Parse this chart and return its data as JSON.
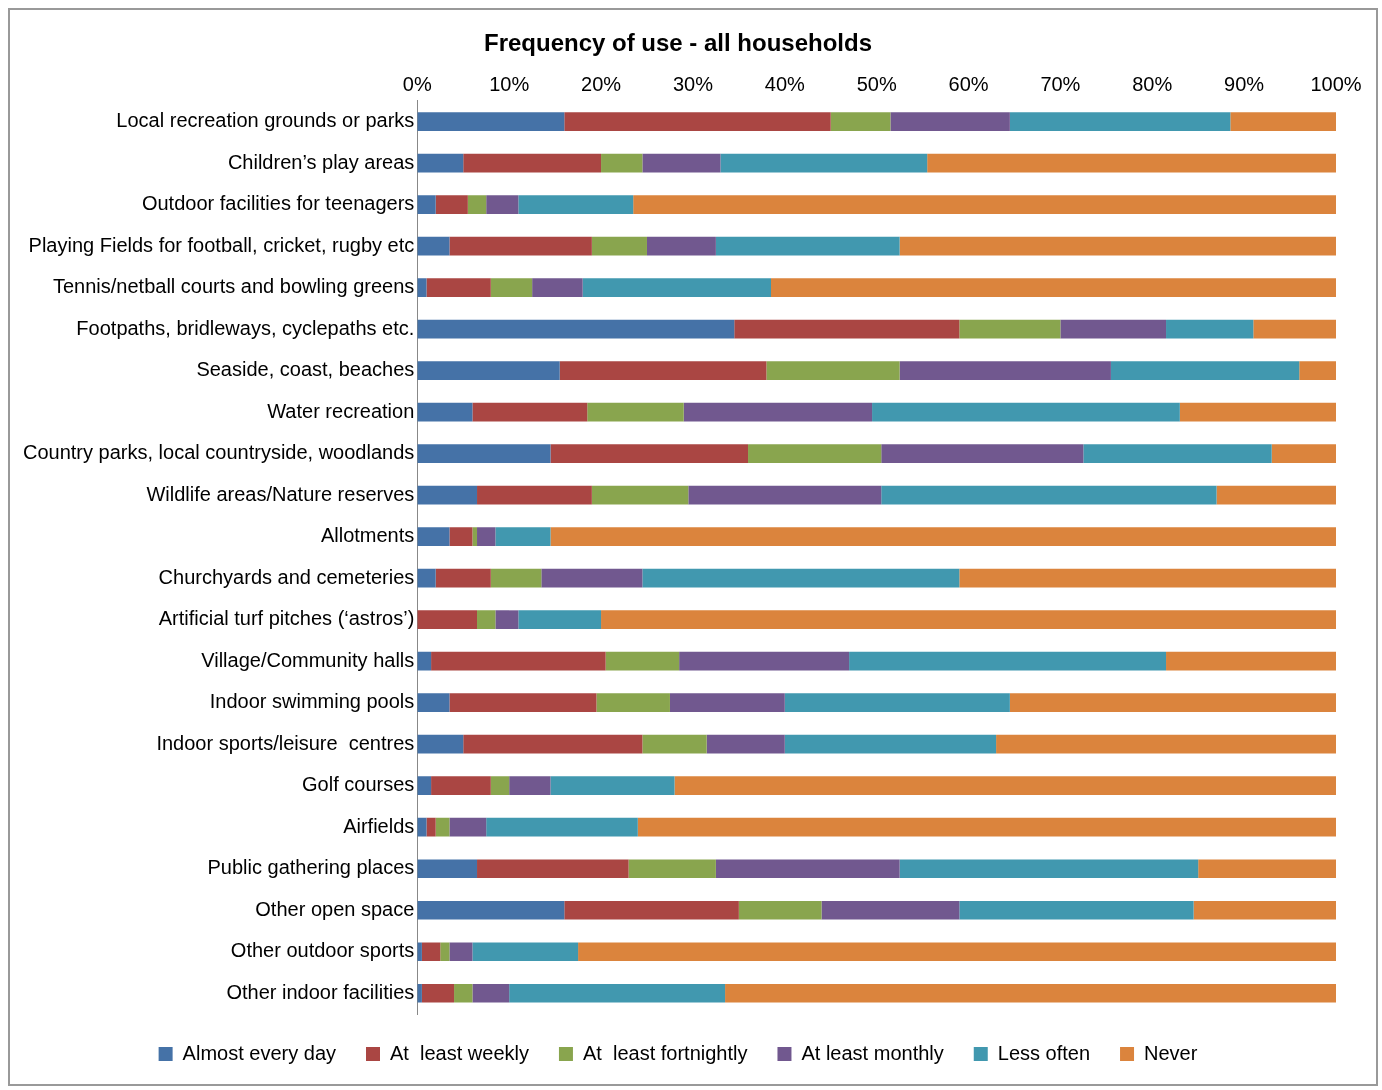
{
  "chart_data": {
    "type": "bar",
    "orientation": "horizontal",
    "stacked": true,
    "title": "Frequency of use - all households",
    "categories": [
      "Local recreation grounds or parks",
      "Children’s play areas",
      "Outdoor facilities for teenagers",
      "Playing Fields for football, cricket, rugby etc",
      "Tennis/netball courts and bowling greens",
      "Footpaths, bridleways, cyclepaths etc.",
      "Seaside, coast, beaches",
      "Water recreation",
      "Country parks, local countryside, woodlands",
      "Wildlife areas/Nature reserves",
      "Allotments",
      "Churchyards and cemeteries",
      "Artificial turf pitches (‘astros’)",
      "Village/Community halls",
      "Indoor swimming pools",
      "Indoor sports/leisure  centres",
      "Golf courses",
      "Airfields",
      "Public gathering places",
      "Other open space",
      "Other outdoor sports",
      "Other indoor facilities"
    ],
    "series": [
      {
        "name": "Almost every day",
        "color": "#4572a7",
        "values": [
          16,
          5,
          2,
          3.5,
          1,
          34.5,
          15.5,
          6,
          14.5,
          6.5,
          3.5,
          2,
          0,
          1.5,
          3.5,
          5,
          1.5,
          1,
          6.5,
          16,
          0.5,
          0.5
        ]
      },
      {
        "name": "At  least weekly",
        "color": "#aa4643",
        "values": [
          29,
          15,
          3.5,
          15.5,
          7,
          24.5,
          22.5,
          12.5,
          21.5,
          12.5,
          2.5,
          6,
          6.5,
          19,
          16,
          19.5,
          6.5,
          1,
          16.5,
          19,
          2,
          3.5
        ]
      },
      {
        "name": "At  least fortnightly",
        "color": "#89a54e",
        "values": [
          6.5,
          4.5,
          2,
          6,
          4.5,
          11,
          14.5,
          10.5,
          14.5,
          10.5,
          0.5,
          5.5,
          2,
          8,
          8,
          7,
          2,
          1.5,
          9.5,
          9,
          1,
          2
        ]
      },
      {
        "name": "At least monthly",
        "color": "#71588f",
        "values": [
          13,
          8.5,
          3.5,
          7.5,
          5.5,
          11.5,
          23,
          20.5,
          22,
          21,
          2,
          11,
          2.5,
          18.5,
          12.5,
          8.5,
          4.5,
          4,
          20,
          15,
          2.5,
          4
        ]
      },
      {
        "name": "Less often",
        "color": "#4198af",
        "values": [
          24,
          22.5,
          12.5,
          20,
          20.5,
          9.5,
          20.5,
          33.5,
          20.5,
          36.5,
          6,
          34.5,
          9,
          34.5,
          24.5,
          23,
          13.5,
          16.5,
          32.5,
          25.5,
          11.5,
          23.5
        ]
      },
      {
        "name": "Never",
        "color": "#db843d",
        "values": [
          11.5,
          44.5,
          76.5,
          47.5,
          61.5,
          9,
          4,
          17,
          7,
          13,
          85.5,
          41,
          80,
          18.5,
          35.5,
          37,
          72,
          76,
          15,
          15.5,
          82.5,
          66.5
        ]
      }
    ],
    "xlim": [
      0,
      100
    ],
    "xticks": [
      {
        "value": 0,
        "label": "0%"
      },
      {
        "value": 10,
        "label": "10%"
      },
      {
        "value": 20,
        "label": "20%"
      },
      {
        "value": 30,
        "label": "30%"
      },
      {
        "value": 40,
        "label": "40%"
      },
      {
        "value": 50,
        "label": "50%"
      },
      {
        "value": 60,
        "label": "60%"
      },
      {
        "value": 70,
        "label": "70%"
      },
      {
        "value": 80,
        "label": "80%"
      },
      {
        "value": 90,
        "label": "90%"
      },
      {
        "value": 100,
        "label": "100%"
      }
    ],
    "grid": false,
    "legend": "bottom"
  }
}
